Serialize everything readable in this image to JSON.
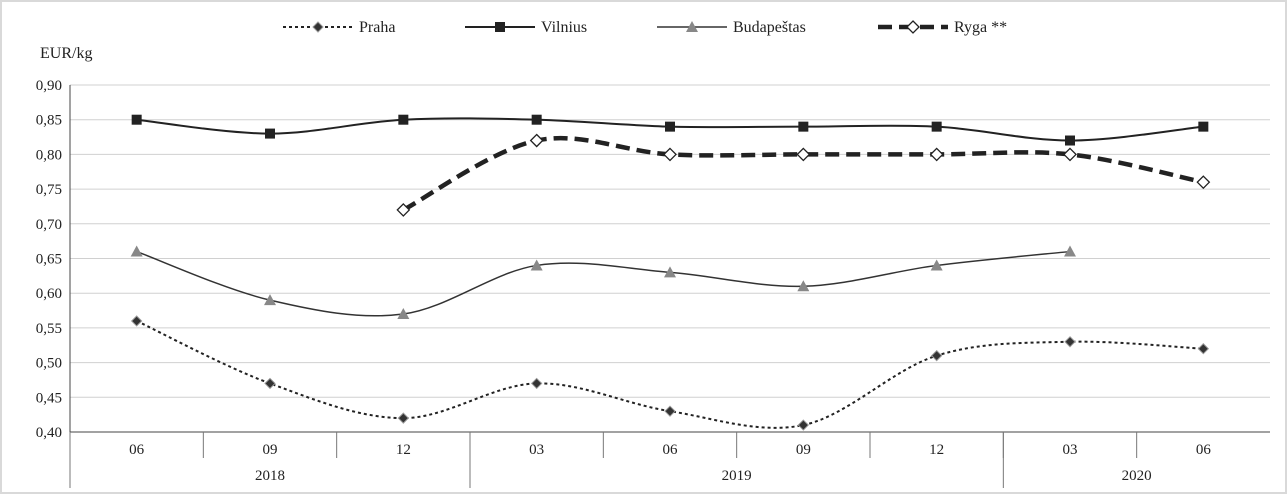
{
  "chart_data": {
    "type": "line",
    "ylabel": "EUR/kg",
    "ylim": [
      0.4,
      0.9
    ],
    "yticks": [
      "0,90",
      "0,85",
      "0,80",
      "0,75",
      "0,70",
      "0,65",
      "0,60",
      "0,55",
      "0,50",
      "0,45",
      "0,40"
    ],
    "categories": [
      "06",
      "09",
      "12",
      "03",
      "06",
      "09",
      "12",
      "03",
      "06"
    ],
    "year_groups": [
      {
        "label": "2018",
        "span": 3
      },
      {
        "label": "2019",
        "span": 4
      },
      {
        "label": "2020",
        "span": 2
      }
    ],
    "grid": "horizontal",
    "legend_position": "top",
    "series": [
      {
        "name": "Praha",
        "style": "dotted",
        "marker": "diamond-filled",
        "color": "#222222",
        "values": [
          0.56,
          0.47,
          0.42,
          0.47,
          0.43,
          0.41,
          0.51,
          0.53,
          0.52
        ]
      },
      {
        "name": "Vilnius",
        "style": "solid",
        "marker": "square",
        "color": "#222222",
        "values": [
          0.85,
          0.83,
          0.85,
          0.85,
          0.84,
          0.84,
          0.84,
          0.82,
          0.84
        ]
      },
      {
        "name": "Budapeštas",
        "style": "solid-thin",
        "marker": "triangle",
        "color": "#808080",
        "values": [
          0.66,
          0.59,
          0.57,
          0.64,
          0.63,
          0.61,
          0.64,
          0.66,
          null
        ]
      },
      {
        "name": "Ryga **",
        "style": "dashed-thick",
        "marker": "diamond-open",
        "color": "#222222",
        "values": [
          null,
          null,
          0.72,
          0.82,
          0.8,
          0.8,
          0.8,
          0.8,
          0.76
        ]
      }
    ]
  }
}
